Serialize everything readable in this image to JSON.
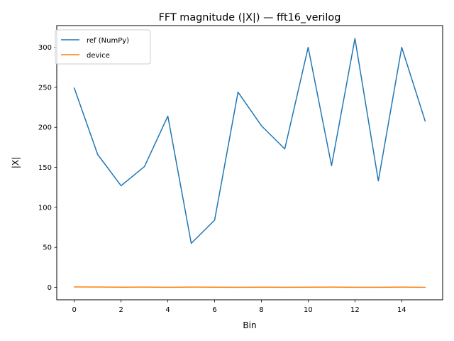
{
  "chart_data": {
    "type": "line",
    "title": "FFT magnitude (|X|) — fft16_verilog",
    "xlabel": "Bin",
    "ylabel": "|X|",
    "xlim": [
      -0.75,
      15.75
    ],
    "ylim": [
      -15.6,
      327.2
    ],
    "xticks": [
      0,
      2,
      4,
      6,
      8,
      10,
      12,
      14
    ],
    "yticks": [
      0,
      50,
      100,
      150,
      200,
      250,
      300
    ],
    "grid": false,
    "legend_position": "upper-left",
    "x": [
      0,
      1,
      2,
      3,
      4,
      5,
      6,
      7,
      8,
      9,
      10,
      11,
      12,
      13,
      14,
      15
    ],
    "series": [
      {
        "name": "ref (NumPy)",
        "color": "#1f77b4",
        "values": [
          249,
          166,
          127,
          151,
          214,
          55,
          84,
          244,
          202,
          173,
          300,
          152,
          311,
          133,
          300,
          208
        ]
      },
      {
        "name": "device",
        "color": "#ff7f0e",
        "values": [
          0.5,
          0.4,
          0.2,
          0.3,
          0.1,
          0.3,
          0.2,
          0.1,
          0.2,
          0.1,
          0.2,
          0.3,
          0.1,
          0.1,
          0.3,
          0.0
        ]
      }
    ]
  }
}
